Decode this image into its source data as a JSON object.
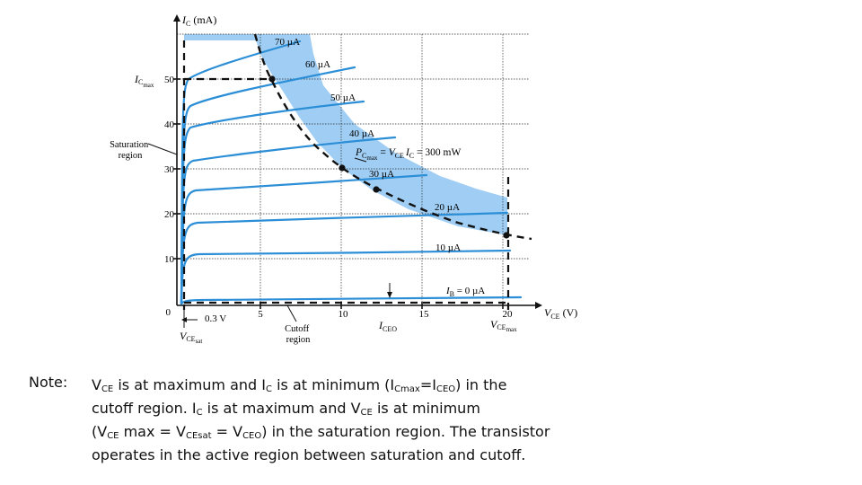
{
  "axes": {
    "y_label_main": "I",
    "y_label_sub": "C",
    "y_label_unit": " (mA)",
    "x_label_main": "V",
    "x_label_sub": "CE",
    "x_label_unit": " (V)",
    "y_ticks": [
      "0",
      "10",
      "20",
      "30",
      "40",
      "50"
    ],
    "x_ticks": [
      "5",
      "10",
      "15",
      "20"
    ],
    "ic_max_main": "I",
    "ic_max_sub": "C",
    "ic_max_subsub": "max",
    "vce_max_main": "V",
    "vce_max_sub": "CE",
    "vce_max_subsub": "max"
  },
  "annotations": {
    "saturation_line1": "Saturation",
    "saturation_line2": "region",
    "cutoff_line1": "Cutoff",
    "cutoff_line2": "region",
    "vce_sat_offset": "0.3 V",
    "vce_sat_main": "V",
    "vce_sat_sub": "CE",
    "vce_sat_subsub": "sat",
    "iceo_main": "I",
    "iceo_sub": "CEO",
    "pcmax_main": "P",
    "pcmax_sub": "C",
    "pcmax_subsub": "max",
    "pcmax_eq1": " = ",
    "pcmax_eq_v": "V",
    "pcmax_eq_vsub": "CE",
    "pcmax_eq_i": "I",
    "pcmax_eq_isub": "C",
    "pcmax_eq_end": " = 300 mW"
  },
  "curves": [
    {
      "label": "70 µA"
    },
    {
      "label": "60 µA"
    },
    {
      "label": "50 µA"
    },
    {
      "label": "40 µA"
    },
    {
      "label": "30 µA"
    },
    {
      "label": "20 µA"
    },
    {
      "label": "10 µA"
    },
    {
      "label_main": "I",
      "label_sub": "B",
      "label_value": " = 0 µA"
    }
  ],
  "colors": {
    "curve": "#2b8ed6",
    "shade": "#9fcdf3",
    "grid": "#2a2a2a",
    "text": "#111111"
  },
  "note": {
    "label": "Note:",
    "l1_a": "V",
    "l1_a_sub": "CE",
    "l1_b": " is at maximum and I",
    "l1_b_sub": "C",
    "l1_c": " is at minimum (I",
    "l1_c_sub": "Cmax",
    "l1_d": "=I",
    "l1_d_sub": "CEO",
    "l1_e": ") in the",
    "l2_a": "cutoff region. I",
    "l2_a_sub": "C",
    "l2_b": " is at maximum and V",
    "l2_b_sub": "CE",
    "l2_c": " is at minimum",
    "l3_a": "(V",
    "l3_a_sub": "CE",
    "l3_b": " max = V",
    "l3_b_sub": "CEsat",
    "l3_c": " = V",
    "l3_c_sub": "CEO",
    "l3_d": ") in the saturation region. The transistor",
    "l4": "operates in the active region between saturation and cutoff."
  }
}
